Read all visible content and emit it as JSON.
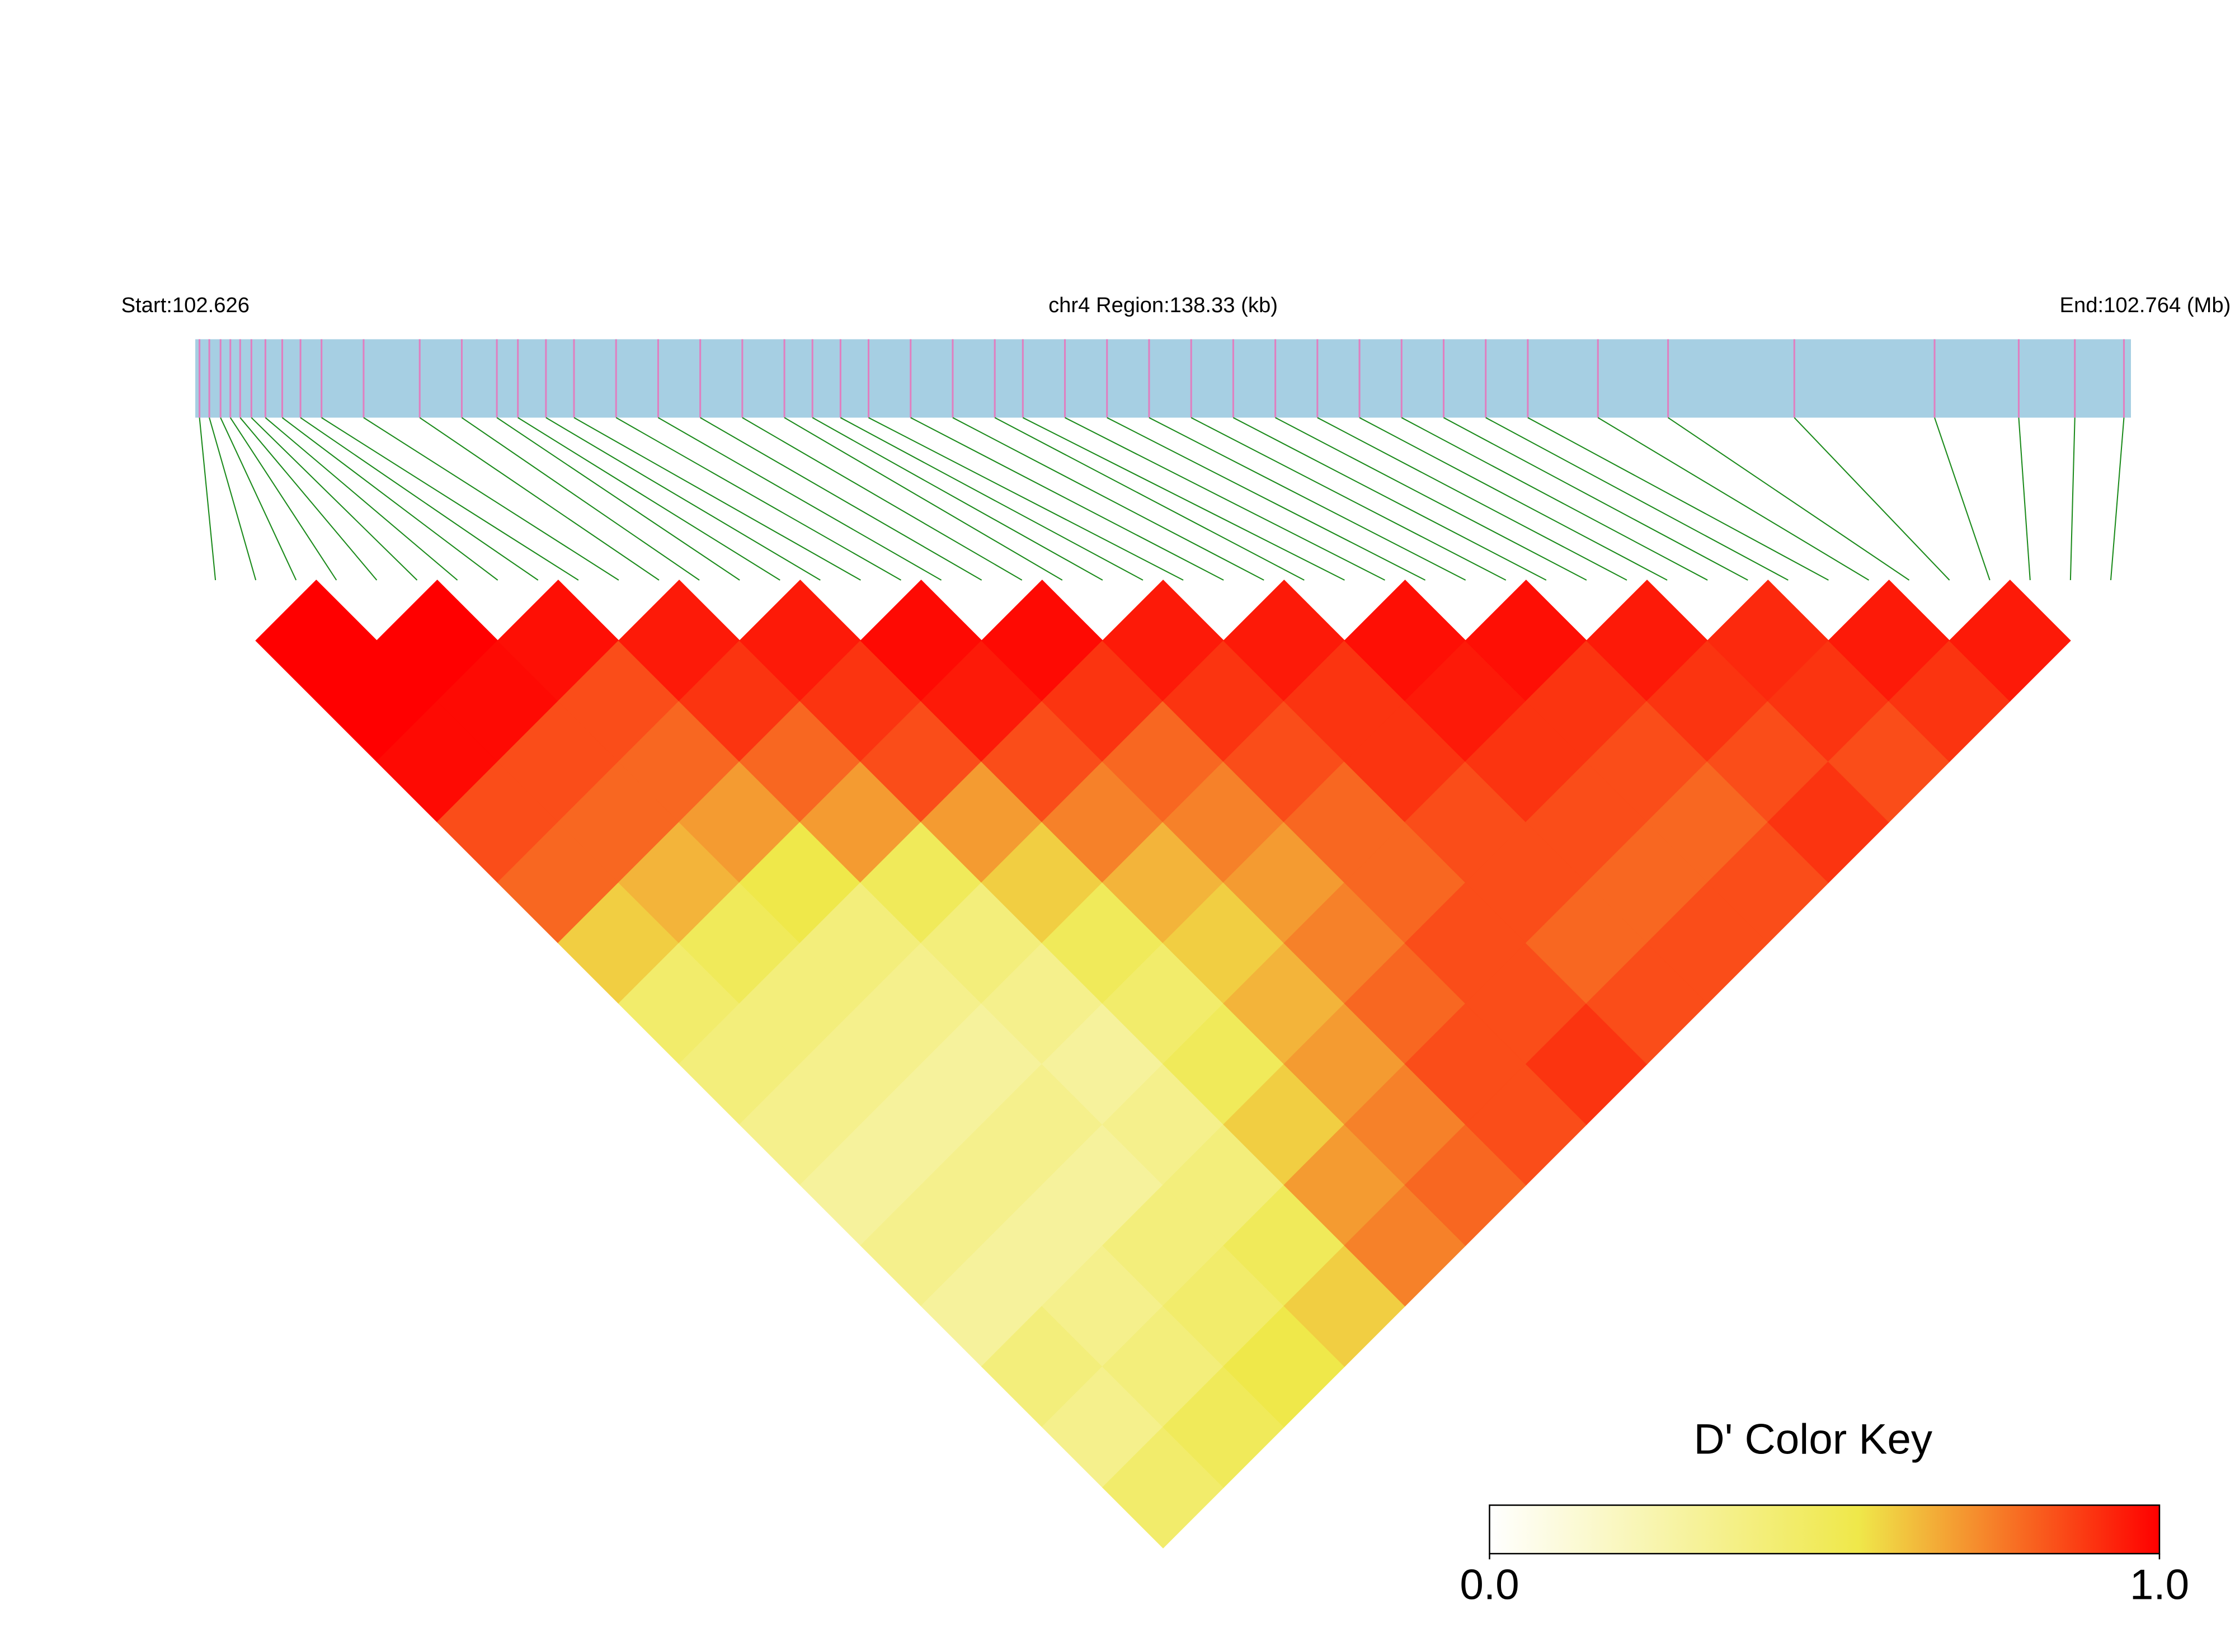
{
  "chart_data": {
    "type": "heatmap",
    "title": "chr4 Region:138.33 (kb)",
    "start_label": "Start:102.626",
    "end_label": "End:102.764 (Mb)",
    "colorbar_title": "D' Color Key",
    "xlim": [
      102.626,
      102.764
    ],
    "snp_positions": [
      102.6263,
      102.627,
      102.6278,
      102.6285,
      102.6292,
      102.63,
      102.631,
      102.6322,
      102.6335,
      102.635,
      102.638,
      102.642,
      102.645,
      102.6475,
      102.649,
      102.651,
      102.653,
      102.656,
      102.659,
      102.662,
      102.665,
      102.668,
      102.67,
      102.672,
      102.674,
      102.677,
      102.68,
      102.683,
      102.685,
      102.688,
      102.691,
      102.694,
      102.697,
      102.7,
      102.703,
      102.706,
      102.709,
      102.712,
      102.715,
      102.718,
      102.721,
      102.726,
      102.731,
      102.74,
      102.75,
      102.756,
      102.76,
      102.7635
    ],
    "track_color": "#a6cfe3",
    "snp_color": "#e07fc0",
    "link_color": "#1a8a1a",
    "dprime": [
      [
        1,
        1,
        0.98,
        0.85,
        0.8,
        0.6,
        0.45,
        0.4,
        0.35,
        0.3,
        0.35,
        0.3,
        0.4,
        0.35,
        0.45
      ],
      [
        1,
        0.98,
        0.85,
        0.8,
        0.65,
        0.5,
        0.4,
        0.35,
        0.3,
        0.35,
        0.3,
        0.35,
        0.4,
        0.5
      ],
      [
        0.97,
        0.85,
        0.8,
        0.7,
        0.55,
        0.4,
        0.35,
        0.3,
        0.35,
        0.3,
        0.4,
        0.45,
        0.55
      ],
      [
        0.95,
        0.9,
        0.8,
        0.7,
        0.5,
        0.4,
        0.35,
        0.3,
        0.35,
        0.4,
        0.5,
        0.6
      ],
      [
        0.95,
        0.9,
        0.85,
        0.7,
        0.6,
        0.5,
        0.45,
        0.5,
        0.6,
        0.7,
        0.75
      ],
      [
        0.98,
        0.95,
        0.85,
        0.75,
        0.65,
        0.6,
        0.65,
        0.7,
        0.75,
        0.8
      ],
      [
        0.98,
        0.9,
        0.8,
        0.75,
        0.7,
        0.75,
        0.8,
        0.85,
        0.85
      ],
      [
        0.95,
        0.9,
        0.85,
        0.8,
        0.8,
        0.85,
        0.85,
        0.9
      ],
      [
        0.95,
        0.9,
        0.9,
        0.85,
        0.85,
        0.8,
        0.85
      ],
      [
        0.97,
        0.95,
        0.9,
        0.85,
        0.8,
        0.85
      ],
      [
        0.97,
        0.9,
        0.85,
        0.8,
        0.85
      ],
      [
        0.95,
        0.9,
        0.85,
        0.9
      ],
      [
        0.92,
        0.9,
        0.85
      ],
      [
        0.95,
        0.9
      ],
      [
        0.95
      ]
    ],
    "colorscale": [
      [
        0,
        "#ffffff"
      ],
      [
        0.55,
        "#efe84a"
      ],
      [
        1,
        "#ff0000"
      ]
    ],
    "clim": [
      0,
      1
    ],
    "cticks": [
      {
        "value": 0,
        "label": "0.0"
      },
      {
        "value": 1,
        "label": "1.0"
      }
    ]
  }
}
